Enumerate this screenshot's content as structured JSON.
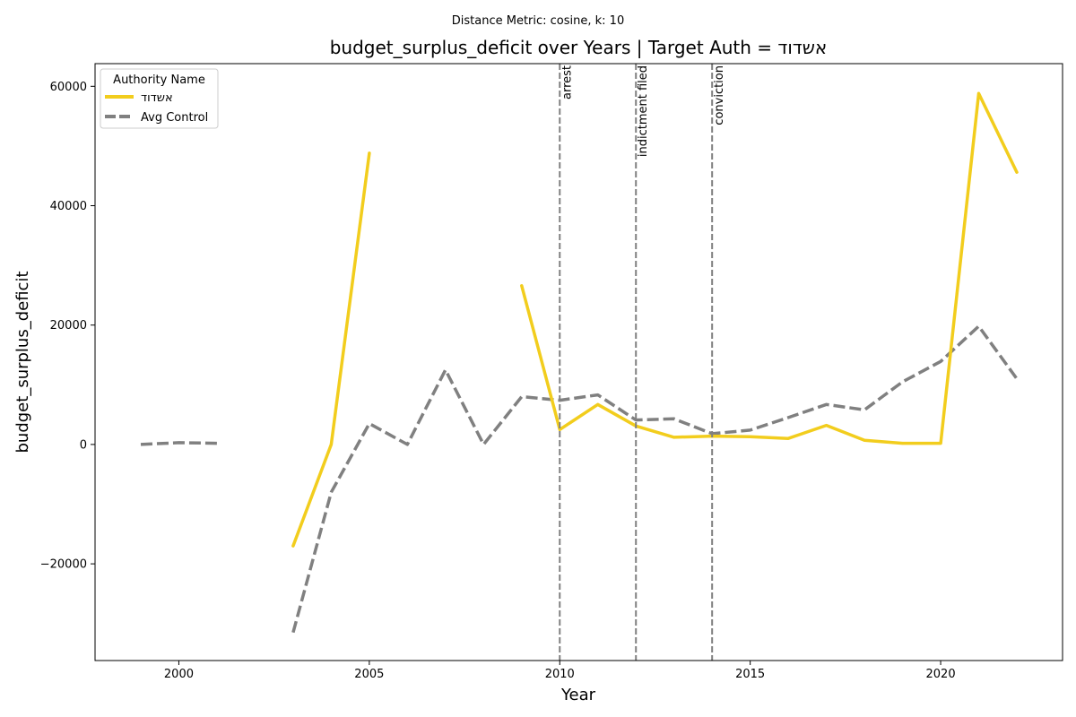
{
  "suptitle": "Distance Metric: cosine, k: 10",
  "colors": {
    "target": "#f2cd1d",
    "control": "#808080",
    "event_line": "#808080"
  },
  "chart_data": {
    "type": "line",
    "title": "budget_surplus_deficit over Years | Target Auth = אשדוד",
    "xlabel": "Year",
    "ylabel": "budget_surplus_deficit",
    "xlim": [
      1997.8,
      2023.2
    ],
    "ylim": [
      -36200,
      63800
    ],
    "xticks": [
      2000,
      2005,
      2010,
      2015,
      2020
    ],
    "yticks": [
      -20000,
      0,
      20000,
      40000,
      60000
    ],
    "grid": false,
    "legend": {
      "title": "Authority Name",
      "placement": "top-left"
    },
    "series": [
      {
        "name": "אשדוד",
        "style": "solid",
        "points": [
          [
            2003,
            -17000
          ],
          [
            2004,
            0
          ],
          [
            2005,
            48800
          ],
          [
            2006,
            null
          ],
          [
            2007,
            null
          ],
          [
            2008,
            null
          ],
          [
            2009,
            26600
          ],
          [
            2010,
            2500
          ],
          [
            2011,
            6700
          ],
          [
            2012,
            3100
          ],
          [
            2013,
            1200
          ],
          [
            2014,
            1400
          ],
          [
            2015,
            1300
          ],
          [
            2016,
            1000
          ],
          [
            2017,
            3200
          ],
          [
            2018,
            700
          ],
          [
            2019,
            200
          ],
          [
            2020,
            200
          ],
          [
            2021,
            58800
          ],
          [
            2022,
            45600
          ]
        ]
      },
      {
        "name": "Avg Control",
        "style": "dashed",
        "points": [
          [
            1999,
            0
          ],
          [
            2000,
            300
          ],
          [
            2001,
            200
          ],
          [
            2002,
            null
          ],
          [
            2003,
            -31500
          ],
          [
            2004,
            -8000
          ],
          [
            2005,
            3500
          ],
          [
            2006,
            0
          ],
          [
            2007,
            12500
          ],
          [
            2008,
            0
          ],
          [
            2009,
            8000
          ],
          [
            2010,
            7400
          ],
          [
            2011,
            8300
          ],
          [
            2012,
            4100
          ],
          [
            2013,
            4300
          ],
          [
            2014,
            1800
          ],
          [
            2015,
            2400
          ],
          [
            2016,
            4500
          ],
          [
            2017,
            6700
          ],
          [
            2018,
            5800
          ],
          [
            2019,
            10500
          ],
          [
            2020,
            13900
          ],
          [
            2021,
            19800
          ],
          [
            2022,
            11000
          ]
        ]
      }
    ],
    "events": [
      {
        "x": 2010,
        "label": "arrest"
      },
      {
        "x": 2012,
        "label": "indictment filed"
      },
      {
        "x": 2014,
        "label": "conviction"
      }
    ]
  }
}
